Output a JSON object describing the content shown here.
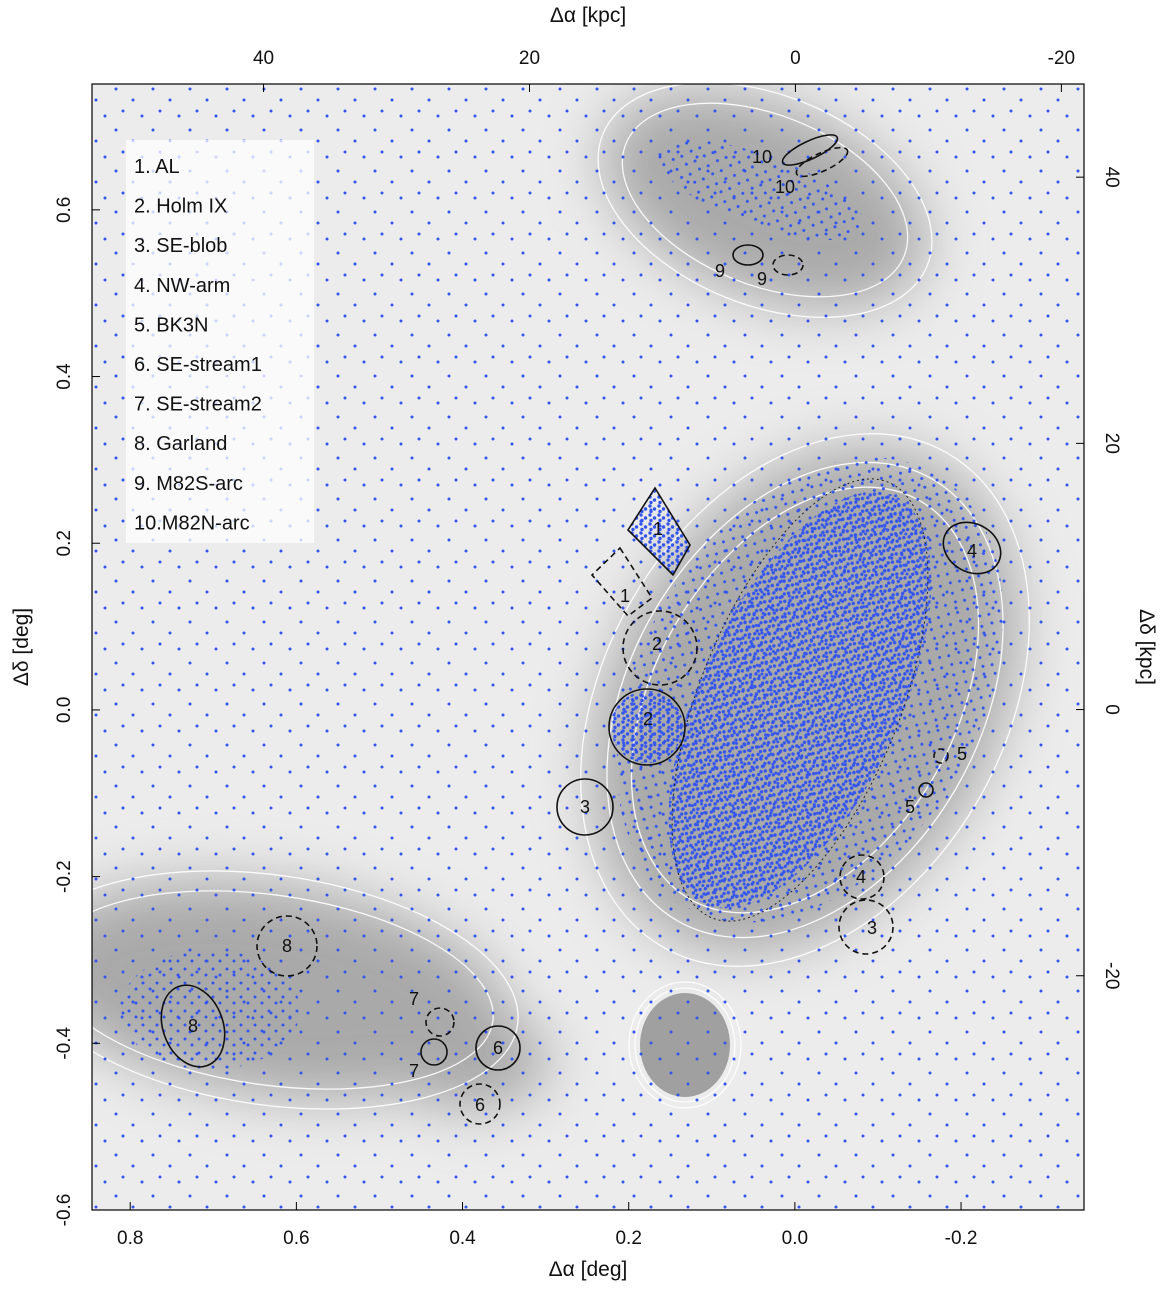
{
  "chart_data": {
    "type": "map",
    "xlabel": "Δα [deg]",
    "x2label": "Δα [kpc]",
    "ylabel": "Δδ [deg]",
    "y2label": "Δδ [kpc]",
    "xlim": [
      0.846,
      -0.348
    ],
    "xticks": [
      0.8,
      0.6,
      0.4,
      0.2,
      {
        "value": 0,
        "label": "0.0"
      },
      -0.2
    ],
    "x2lim": [
      52.9,
      -21.7
    ],
    "x2ticks": [
      40,
      20,
      0,
      -20
    ],
    "ylim": [
      -0.6,
      0.751
    ],
    "yticks": [
      -0.6,
      -0.4,
      -0.2,
      {
        "value": 0,
        "label": "0.0"
      },
      0.2,
      0.4,
      0.6
    ],
    "y2lim": [
      -37.6,
      47.0
    ],
    "y2ticks": [
      -20,
      0,
      20,
      40
    ],
    "point_color": "#3355ee",
    "legend": [
      "1. AL",
      "2. Holm IX",
      "3. SE-blob",
      "4. NW-arm",
      "5. BK3N",
      "6. SE-stream1",
      "7. SE-stream2",
      "8. Garland",
      "9. M82S-arc",
      "10.M82N-arc"
    ],
    "region_labels": [
      "10",
      "10",
      "9",
      "9",
      "1",
      "1",
      "2",
      "2",
      "3",
      "3",
      "4",
      "4",
      "5",
      "5",
      "8",
      "8",
      "7",
      "7",
      "6",
      "6"
    ]
  }
}
